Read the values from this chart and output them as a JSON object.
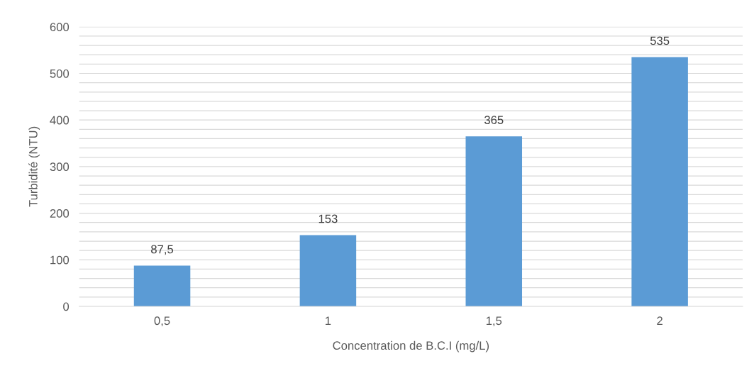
{
  "chart_data": {
    "type": "bar",
    "xlabel": "Concentration de B.C.I (mg/L)",
    "ylabel": "Turbidité (NTU)",
    "categories": [
      "0,5",
      "1",
      "1,5",
      "2"
    ],
    "values": [
      87.5,
      153,
      365,
      535
    ],
    "value_labels": [
      "87,5",
      "153",
      "365",
      "535"
    ],
    "color": "#5b9bd5",
    "ylim": [
      0,
      600
    ],
    "yticks": [
      0,
      {
        "value": 20,
        "label": null
      },
      {
        "value": 40,
        "label": null
      },
      {
        "value": 60,
        "label": null
      },
      {
        "value": 80,
        "label": null
      },
      100,
      {
        "value": 120,
        "label": null
      },
      {
        "value": 140,
        "label": null
      },
      {
        "value": 160,
        "label": null
      },
      {
        "value": 180,
        "label": null
      },
      200,
      {
        "value": 220,
        "label": null
      },
      {
        "value": 240,
        "label": null
      },
      {
        "value": 260,
        "label": null
      },
      {
        "value": 280,
        "label": null
      },
      300,
      {
        "value": 320,
        "label": null
      },
      {
        "value": 340,
        "label": null
      },
      {
        "value": 360,
        "label": null
      },
      {
        "value": 380,
        "label": null
      },
      400,
      {
        "value": 420,
        "label": null
      },
      {
        "value": 440,
        "label": null
      },
      {
        "value": 460,
        "label": null
      },
      {
        "value": 480,
        "label": null
      },
      500,
      {
        "value": 520,
        "label": null
      },
      {
        "value": 540,
        "label": null
      },
      {
        "value": 560,
        "label": null
      },
      {
        "value": 580,
        "label": null
      },
      600
    ],
    "grid": "y"
  }
}
